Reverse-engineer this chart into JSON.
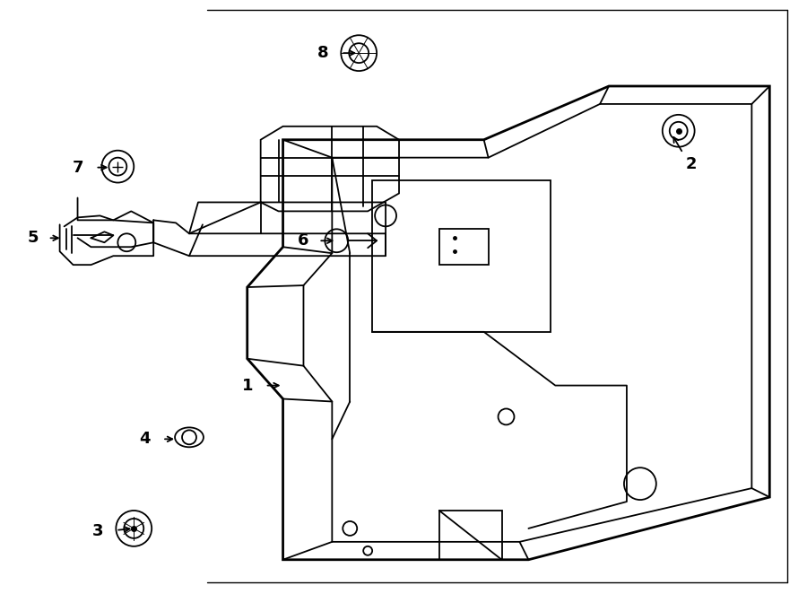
{
  "bg_color": "#ffffff",
  "line_color": "#000000",
  "lw": 1.3,
  "lw_thick": 2.0,
  "fs": 13
}
